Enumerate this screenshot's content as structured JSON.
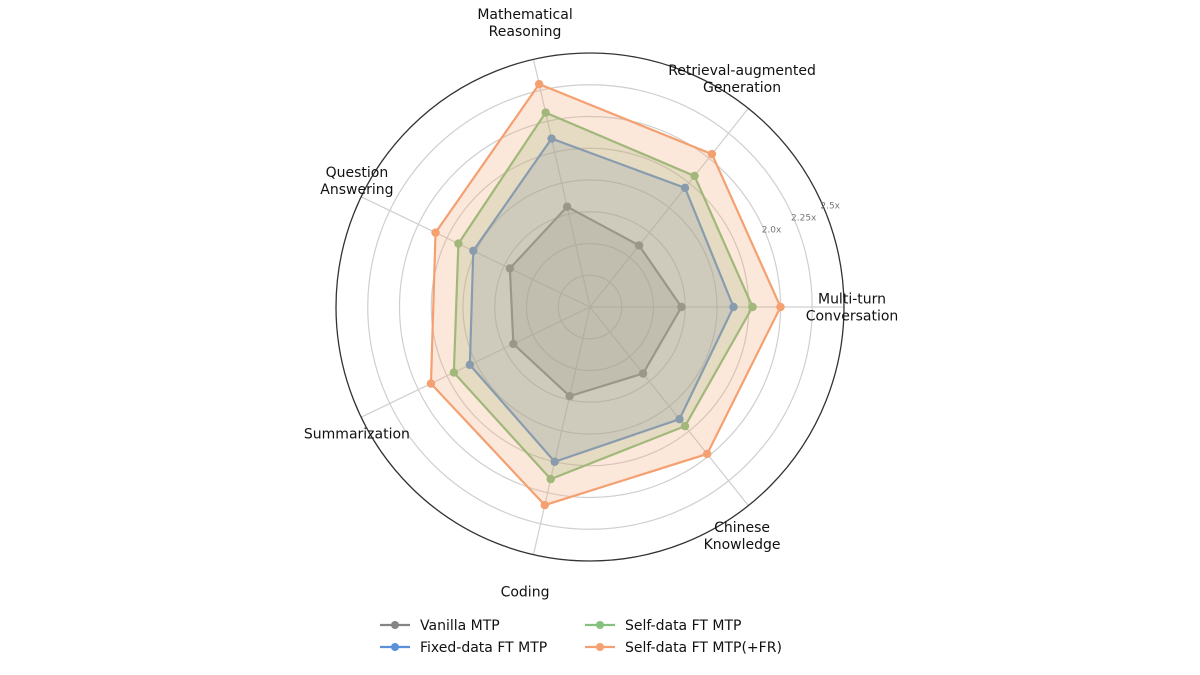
{
  "chart_data": {
    "type": "radar",
    "categories": [
      "Multi-turn\nConversation",
      "Retrieval-augmented\nGeneration",
      "Mathematical\nReasoning",
      "Question\nAnswering",
      "Summarization",
      "Coding",
      "Chinese\nKnowledge"
    ],
    "rlim": [
      0.5,
      2.5
    ],
    "radial_ticks": [
      "2.0x",
      "2.25x",
      "2.5x"
    ],
    "radial_tick_values": [
      2.0,
      2.25,
      2.5
    ],
    "grid": true,
    "legend_position": "bottom",
    "series": [
      {
        "name": "Vanilla MTP",
        "color": "#858585",
        "values": [
          1.22,
          1.12,
          1.31,
          1.2,
          1.17,
          1.22,
          1.17
        ]
      },
      {
        "name": "Fixed-data FT MTP",
        "color": "#5b8fd9",
        "values": [
          1.63,
          1.7,
          1.86,
          1.52,
          1.55,
          1.75,
          1.63
        ]
      },
      {
        "name": "Self-data FT MTP",
        "color": "#86c07e",
        "values": [
          1.78,
          1.82,
          2.07,
          1.65,
          1.69,
          1.89,
          1.7
        ]
      },
      {
        "name": "Self-data FT MTP(+FR)",
        "color": "#f4a070",
        "values": [
          2.0,
          2.04,
          2.3,
          1.85,
          1.89,
          2.1,
          1.98
        ]
      }
    ]
  }
}
